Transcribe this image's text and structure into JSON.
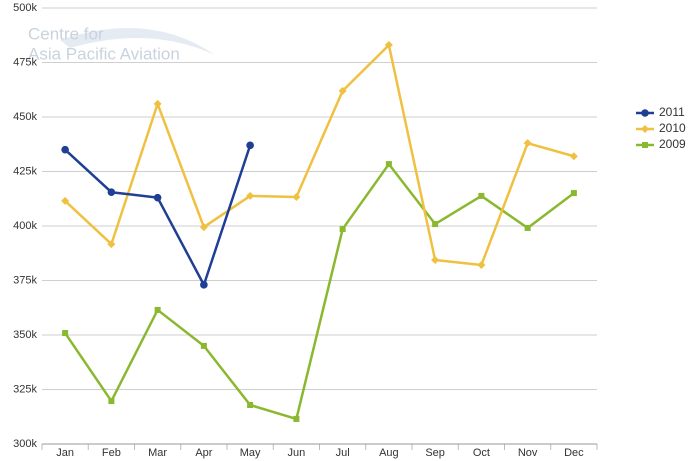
{
  "chart_data": {
    "type": "line",
    "watermark": [
      "Centre for",
      "Asia Pacific Aviation"
    ],
    "categories": [
      "Jan",
      "Feb",
      "Mar",
      "Apr",
      "May",
      "Jun",
      "Jul",
      "Aug",
      "Sep",
      "Oct",
      "Nov",
      "Dec"
    ],
    "series": [
      {
        "name": "2011",
        "color": "#1f3f94",
        "marker": "circle",
        "values": [
          435000,
          415500,
          413000,
          373000,
          437000,
          null,
          null,
          null,
          null,
          null,
          null,
          null
        ]
      },
      {
        "name": "2010",
        "color": "#f0c040",
        "marker": "diamond",
        "values": [
          411500,
          391700,
          456000,
          399500,
          413800,
          413300,
          462000,
          483000,
          384400,
          382100,
          438000,
          432000
        ]
      },
      {
        "name": "2009",
        "color": "#8ab82e",
        "marker": "square",
        "values": [
          350900,
          319700,
          361500,
          345000,
          317900,
          311500,
          398600,
          428400,
          400900,
          413800,
          399100,
          415100
        ]
      }
    ],
    "ylim": [
      300000,
      500000
    ],
    "yticks": [
      {
        "value": 300000,
        "label": "300k"
      },
      {
        "value": 325000,
        "label": "325k"
      },
      {
        "value": 350000,
        "label": "350k"
      },
      {
        "value": 375000,
        "label": "375k"
      },
      {
        "value": 400000,
        "label": "400k"
      },
      {
        "value": 425000,
        "label": "425k"
      },
      {
        "value": 450000,
        "label": "450k"
      },
      {
        "value": 475000,
        "label": "475k"
      },
      {
        "value": 500000,
        "label": "500k"
      }
    ],
    "grid": true,
    "legend": "right"
  }
}
